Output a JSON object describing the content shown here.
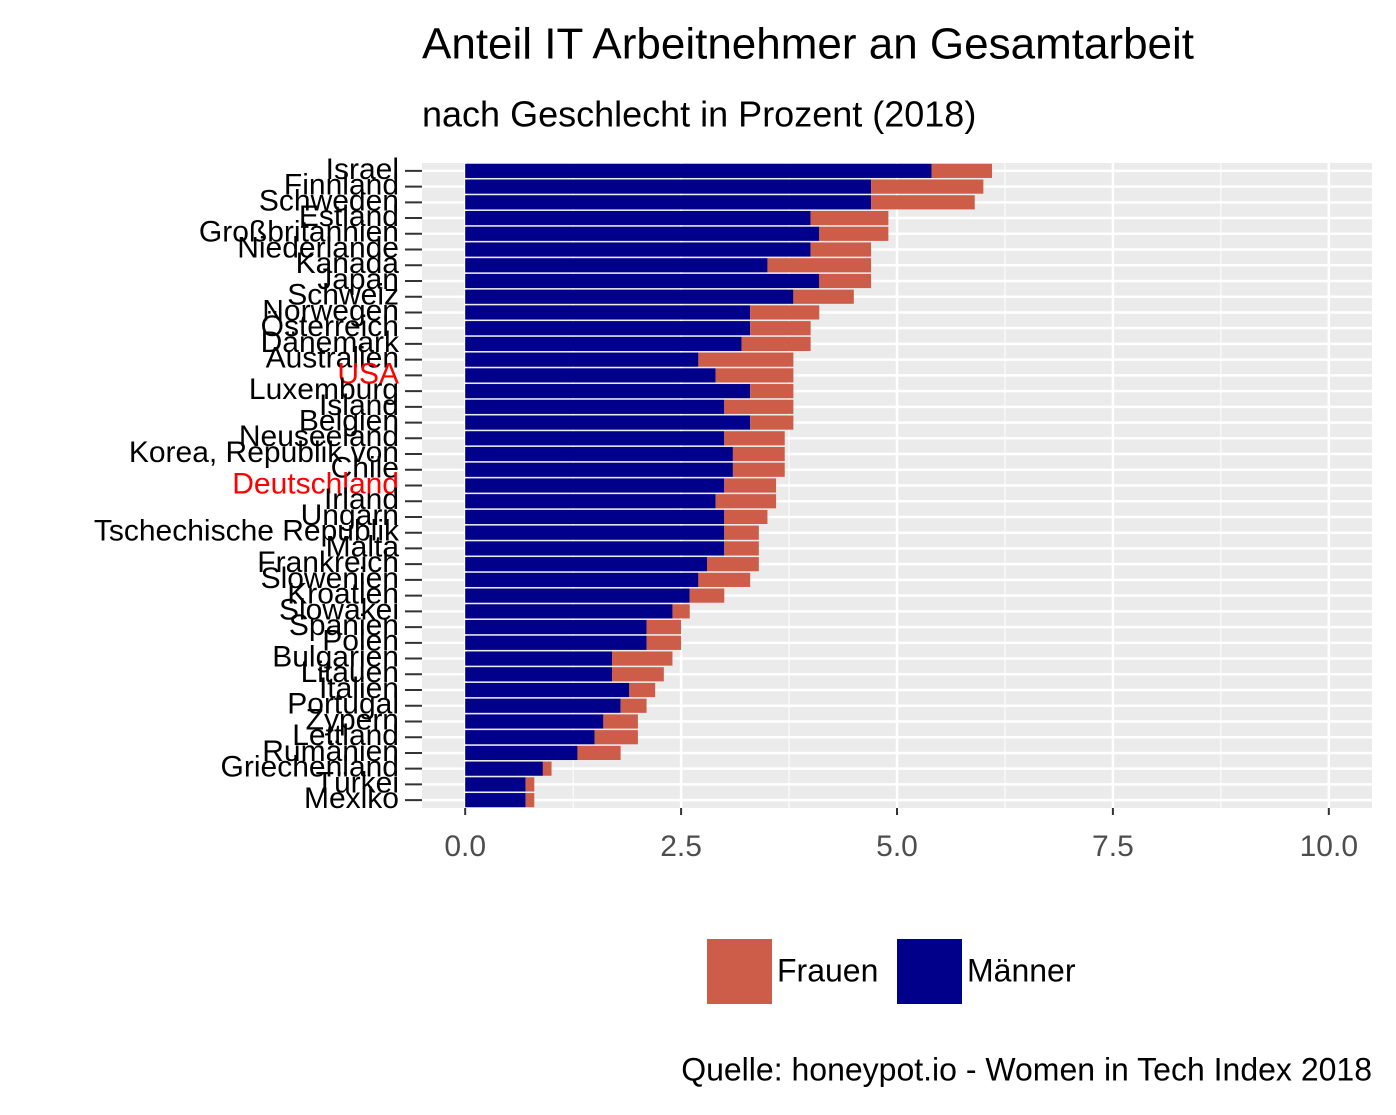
{
  "chart_data": {
    "type": "stacked-barh",
    "title": "Anteil IT Arbeitnehmer an Gesamtarbeit",
    "subtitle": "nach Geschlecht in Prozent (2018)",
    "source": "Quelle: honeypot.io - Women in Tech Index 2018",
    "categories": [
      "Israel",
      "Finnland",
      "Schweden",
      "Estland",
      "Großbritannien",
      "Niederlande",
      "Kanada",
      "Japan",
      "Schweiz",
      "Norwegen",
      "Österreich",
      "Dänemark",
      "Australien",
      "USA",
      "Luxemburg",
      "Island",
      "Belgien",
      "Neuseeland",
      "Korea, Republik von",
      "Chile",
      "Deutschland",
      "Irland",
      "Ungarn",
      "Tschechische Republik",
      "Malta",
      "Frankreich",
      "Slowenien",
      "Kroatien",
      "Slowakei",
      "Spanien",
      "Polen",
      "Bulgarien",
      "Litauen",
      "Italien",
      "Portugal",
      "Zypern",
      "Lettland",
      "Rumänien",
      "Griechenland",
      "Türkei",
      "Mexiko"
    ],
    "highlight": [
      13,
      20
    ],
    "highlight_color": "#ff0000",
    "series": [
      {
        "name": "Frauen",
        "color": "#cd5c48",
        "values": [
          0.7,
          1.3,
          1.2,
          0.9,
          0.8,
          0.7,
          1.2,
          0.6,
          0.7,
          0.8,
          0.7,
          0.8,
          1.1,
          0.9,
          0.5,
          0.8,
          0.5,
          0.7,
          0.6,
          0.6,
          0.6,
          0.7,
          0.5,
          0.4,
          0.4,
          0.6,
          0.6,
          0.4,
          0.2,
          0.4,
          0.4,
          0.7,
          0.6,
          0.3,
          0.3,
          0.4,
          0.5,
          0.5,
          0.1,
          0.1,
          0.1
        ]
      },
      {
        "name": "Männer",
        "color": "#00008b",
        "values": [
          5.4,
          4.7,
          4.7,
          4.0,
          4.1,
          4.0,
          3.5,
          4.1,
          3.8,
          3.3,
          3.3,
          3.2,
          2.7,
          2.9,
          3.3,
          3.0,
          3.3,
          3.0,
          3.1,
          3.1,
          3.0,
          2.9,
          3.0,
          3.0,
          3.0,
          2.8,
          2.7,
          2.6,
          2.4,
          2.1,
          2.1,
          1.7,
          1.7,
          1.9,
          1.8,
          1.6,
          1.5,
          1.3,
          0.9,
          0.7,
          0.7
        ]
      }
    ],
    "xlim": [
      -0.5,
      10.5
    ],
    "xticks": [
      {
        "value": 0,
        "label": "0.0"
      },
      2.5,
      {
        "value": 5,
        "label": "5.0"
      },
      7.5,
      {
        "value": 10,
        "label": "10.0"
      }
    ],
    "grid": true
  }
}
